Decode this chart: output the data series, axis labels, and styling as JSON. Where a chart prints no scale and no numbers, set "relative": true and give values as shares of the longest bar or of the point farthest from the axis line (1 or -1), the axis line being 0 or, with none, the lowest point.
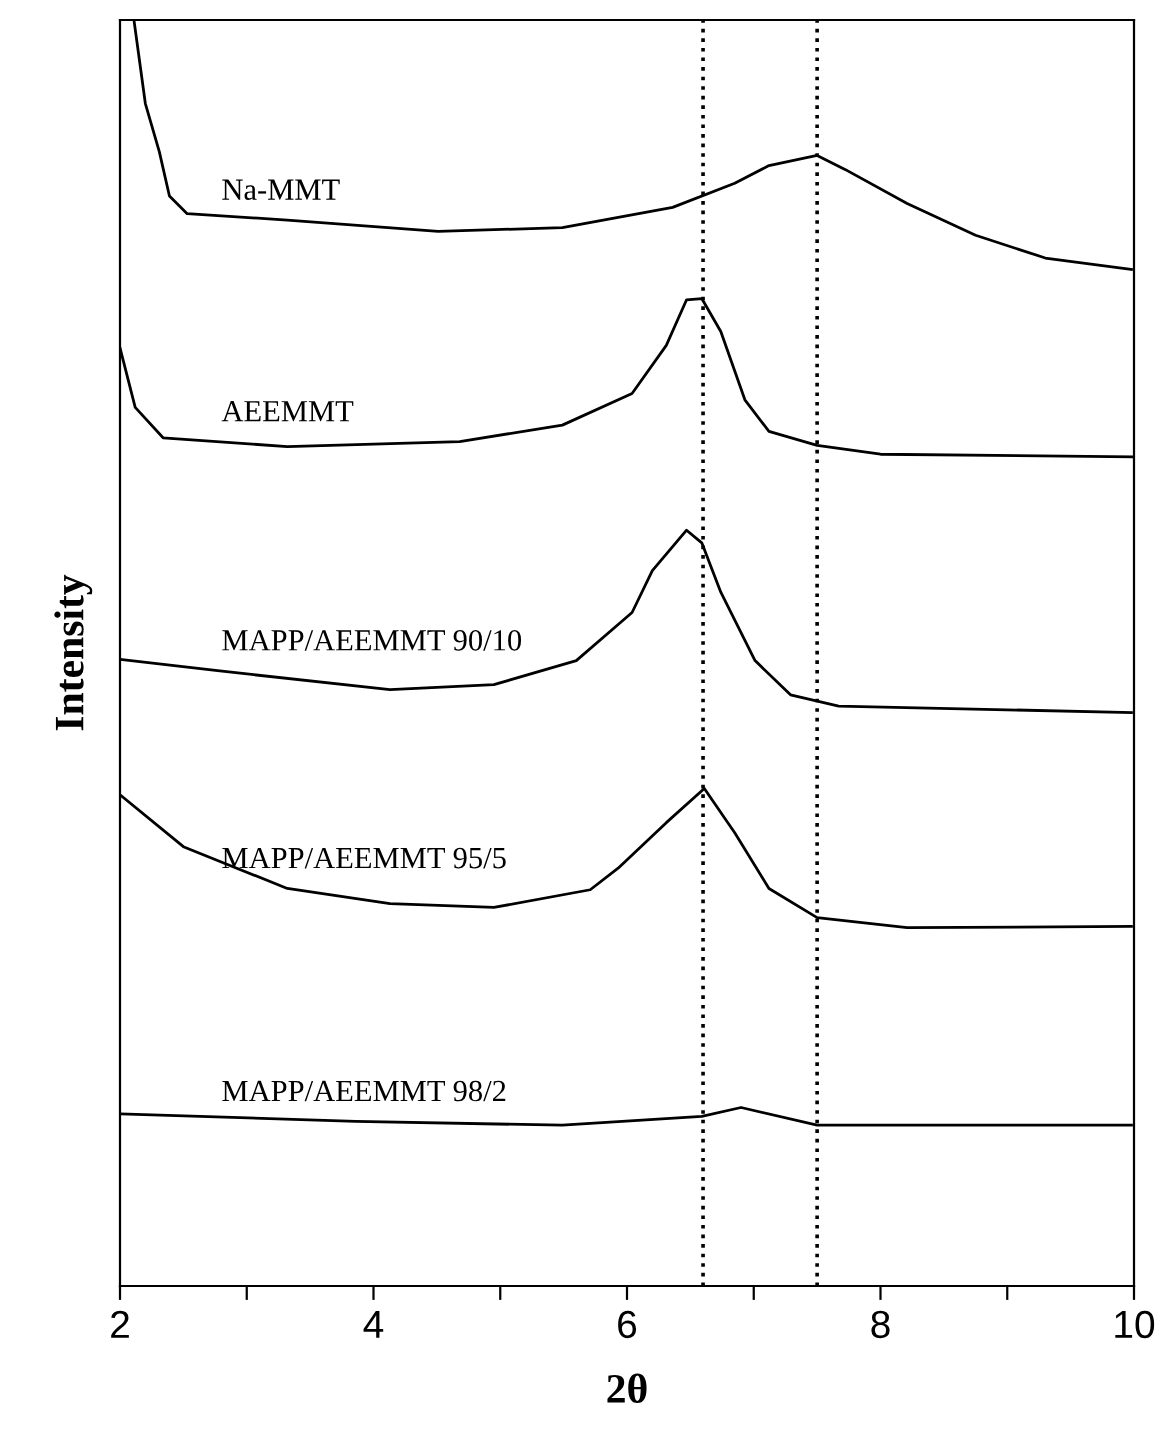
{
  "chart_data": {
    "type": "line",
    "relative": true,
    "xlabel": "2θ",
    "ylabel": "Intensity",
    "xlim": [
      2,
      10
    ],
    "xticks": [
      2,
      {
        "value": 3,
        "label": null
      },
      4,
      {
        "value": 5,
        "label": null
      },
      6,
      {
        "value": 7,
        "label": null
      },
      8,
      {
        "value": 9,
        "label": null
      },
      10
    ],
    "tick_labels": "x",
    "grid": false,
    "legend": false,
    "marker": "none",
    "line_style": "solid",
    "ref_lines": [
      {
        "axis": "x",
        "value": 6.6,
        "line_style": "dotted",
        "color": "#000000"
      },
      {
        "axis": "x",
        "value": 7.5,
        "line_style": "dotted",
        "color": "#000000"
      }
    ],
    "series": [
      {
        "name": "Na-MMT",
        "color": "#000000",
        "x": [
          2.11,
          2.2,
          2.31,
          2.39,
          2.53,
          3.32,
          4.51,
          5.49,
          6.36,
          6.85,
          7.12,
          7.5,
          7.72,
          8.21,
          8.75,
          9.3,
          9.98
        ],
        "values": [
          1.0,
          0.934,
          0.896,
          0.861,
          0.847,
          0.842,
          0.833,
          0.836,
          0.852,
          0.871,
          0.885,
          0.893,
          0.882,
          0.855,
          0.83,
          0.812,
          0.803
        ]
      },
      {
        "name": "AEEMMT",
        "color": "#000000",
        "x": [
          2.0,
          2.12,
          2.34,
          3.32,
          4.68,
          5.49,
          6.04,
          6.31,
          6.47,
          6.59,
          6.74,
          6.93,
          7.12,
          7.5,
          8.0,
          10.0
        ],
        "values": [
          0.741,
          0.694,
          0.67,
          0.663,
          0.667,
          0.68,
          0.705,
          0.743,
          0.779,
          0.78,
          0.754,
          0.7,
          0.675,
          0.664,
          0.657,
          0.655
        ]
      },
      {
        "name": "MAPP/AEEMMT 90/10",
        "color": "#000000",
        "x": [
          2.0,
          2.77,
          4.13,
          4.95,
          5.6,
          6.04,
          6.2,
          6.47,
          6.59,
          6.74,
          7.01,
          7.29,
          7.67,
          9.98
        ],
        "values": [
          0.495,
          0.486,
          0.471,
          0.475,
          0.494,
          0.532,
          0.565,
          0.597,
          0.587,
          0.548,
          0.494,
          0.467,
          0.458,
          0.453
        ]
      },
      {
        "name": "MAPP/AEEMMT 95/5",
        "color": "#000000",
        "x": [
          2.0,
          2.5,
          3.32,
          4.13,
          4.95,
          5.71,
          5.93,
          6.31,
          6.61,
          6.85,
          7.12,
          7.5,
          8.21,
          9.98
        ],
        "values": [
          0.388,
          0.347,
          0.314,
          0.302,
          0.299,
          0.313,
          0.33,
          0.366,
          0.393,
          0.358,
          0.314,
          0.291,
          0.283,
          0.284
        ]
      },
      {
        "name": "MAPP/AEEMMT 98/2",
        "color": "#000000",
        "x": [
          2.0,
          3.86,
          5.49,
          6.59,
          6.9,
          7.5,
          9.98
        ],
        "values": [
          0.136,
          0.13,
          0.127,
          0.134,
          0.141,
          0.127,
          0.127
        ]
      }
    ]
  }
}
